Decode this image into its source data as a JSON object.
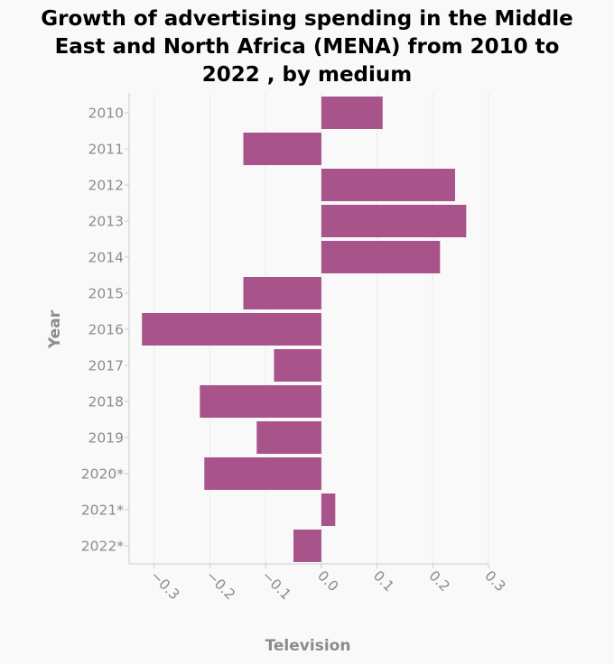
{
  "chart_data": {
    "type": "bar",
    "orientation": "horizontal",
    "title_lines": [
      "Growth of advertising spending in the Middle",
      "East and North Africa (MENA) from 2010 to",
      "2022 , by medium"
    ],
    "xlabel": "Television",
    "ylabel": "Year",
    "categories": [
      "2010",
      "2011",
      "2012",
      "2013",
      "2014",
      "2015",
      "2016",
      "2017",
      "2018",
      "2019",
      "2020*",
      "2021*",
      "2022*"
    ],
    "values": [
      0.11,
      -0.14,
      0.24,
      0.26,
      0.213,
      -0.14,
      -0.322,
      -0.085,
      -0.218,
      -0.116,
      -0.21,
      0.025,
      -0.05
    ],
    "xlim": [
      -0.345,
      0.3
    ],
    "xticks": [
      -0.3,
      -0.2,
      -0.1,
      0.0,
      0.1,
      0.2,
      0.3
    ],
    "xtick_labels": [
      "−0.3",
      "−0.2",
      "−0.1",
      "0.0",
      "0.1",
      "0.2",
      "0.3"
    ],
    "grid": true,
    "legend": "none",
    "colors": {
      "bar": "#a8538a",
      "grid": "#ebebeb",
      "axis": "#cccccc",
      "text": "#8c8c8c"
    }
  }
}
